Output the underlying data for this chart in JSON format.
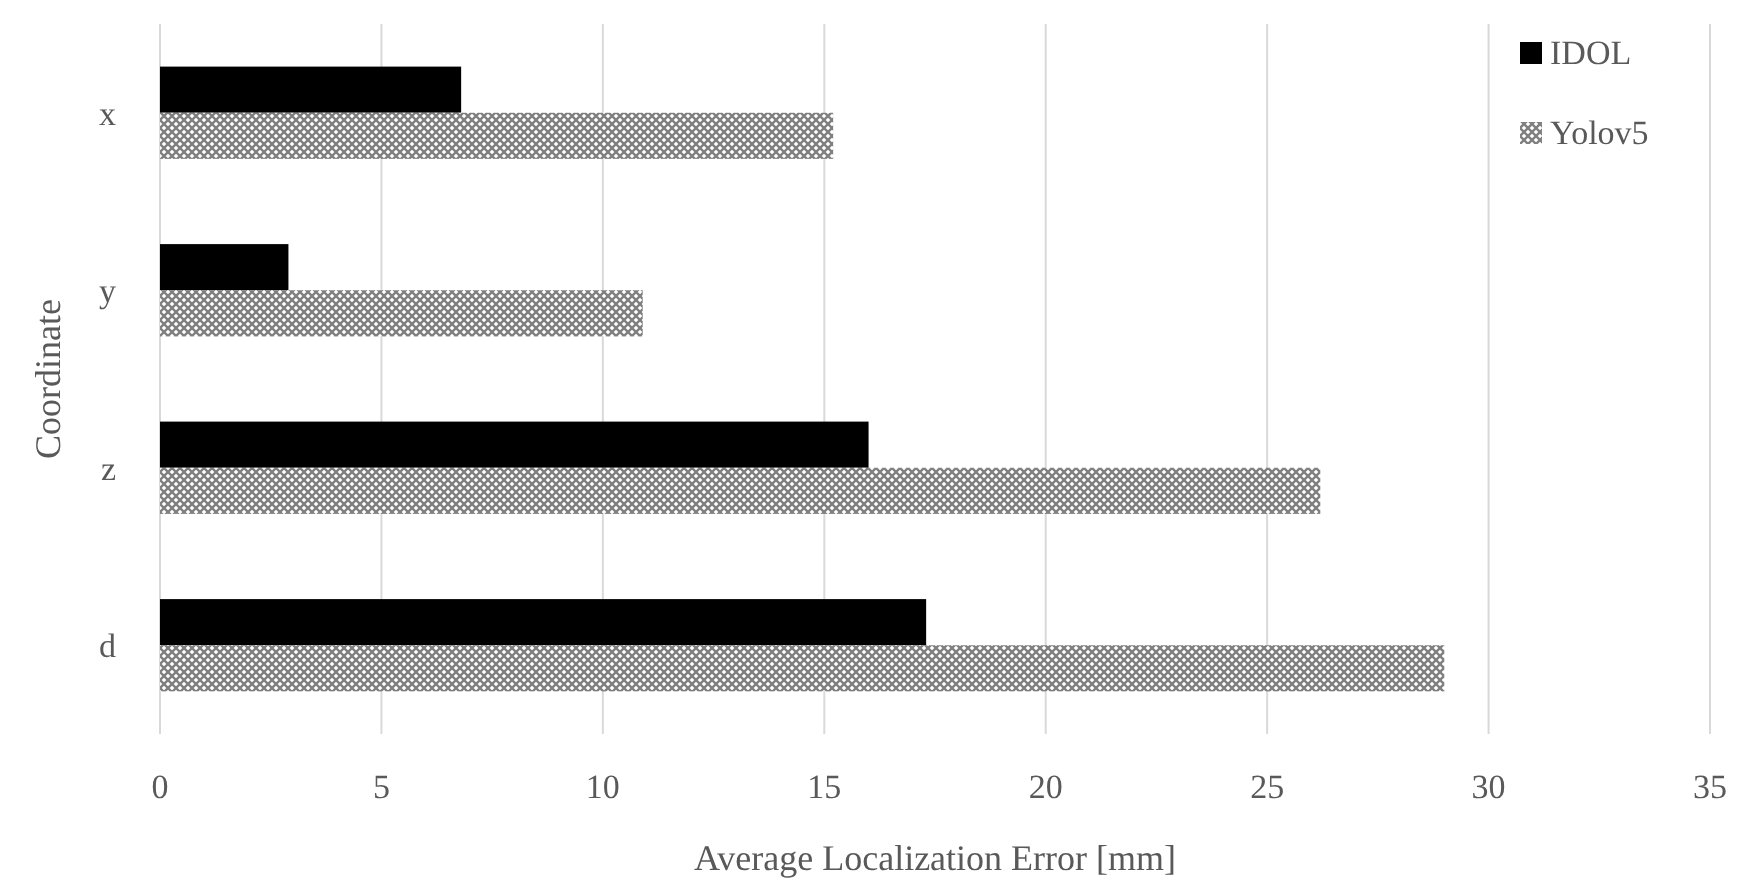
{
  "chart_data": {
    "type": "bar",
    "orientation": "horizontal",
    "xlabel": "Average Localization Error [mm]",
    "ylabel": "Coordinate",
    "categories": [
      "x",
      "y",
      "z",
      "d"
    ],
    "series": [
      {
        "name": "IDOL",
        "color": "#000000",
        "values": [
          6.8,
          2.9,
          16.0,
          17.3
        ]
      },
      {
        "name": "Yolov5",
        "color": "#7f7f7f",
        "values": [
          15.2,
          10.9,
          26.2,
          29.0
        ]
      }
    ],
    "xlim": [
      0,
      35
    ],
    "xticks": [
      0,
      5,
      10,
      15,
      20,
      25,
      30,
      35
    ],
    "grid": "x",
    "legend": "top right"
  }
}
